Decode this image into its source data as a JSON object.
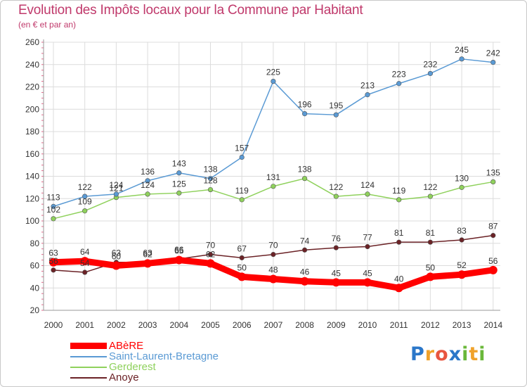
{
  "title": "Evolution des Impôts locaux pour la Commune par Habitant",
  "subtitle": "(en € et par an)",
  "logo": {
    "text": "Proxiti",
    "letters": [
      "P",
      "r",
      "o",
      "x",
      "i",
      "t",
      "i"
    ],
    "colors": [
      "#2b77c9",
      "#f0a22a",
      "#e8553f",
      "#2b77c9",
      "#6ab83a",
      "#f0a22a",
      "#6ab83a"
    ]
  },
  "chart_data": {
    "type": "line",
    "x": [
      "2000",
      "2001",
      "2002",
      "2003",
      "2004",
      "2005",
      "2006",
      "2007",
      "2008",
      "2009",
      "2010",
      "2011",
      "2012",
      "2013",
      "2014"
    ],
    "ylim": [
      20,
      260
    ],
    "yticks": [
      "20",
      "40",
      "60",
      "80",
      "100",
      "120",
      "140",
      "160",
      "180",
      "200",
      "220",
      "240",
      "260"
    ],
    "grid": true,
    "legend_position": "bottom-left",
    "series": [
      {
        "name": "Anoye",
        "color": "#6b2226",
        "values": [
          56,
          54,
          63,
          63,
          66,
          70,
          67,
          70,
          74,
          76,
          77,
          81,
          81,
          83,
          87
        ]
      },
      {
        "name": "Gerderest",
        "color": "#8fd15c",
        "values": [
          102,
          109,
          121,
          124,
          125,
          128,
          119,
          131,
          138,
          122,
          124,
          119,
          122,
          130,
          135
        ]
      },
      {
        "name": "Saint-Laurent-Bretagne",
        "color": "#5a9ad4",
        "values": [
          113,
          122,
          124,
          136,
          143,
          138,
          157,
          225,
          196,
          195,
          213,
          223,
          232,
          245,
          242
        ]
      },
      {
        "name": "ABèRE",
        "color": "#ff0000",
        "values": [
          63,
          64,
          60,
          62,
          65,
          62,
          50,
          48,
          46,
          45,
          45,
          40,
          50,
          52,
          56
        ]
      }
    ],
    "labels": {
      "Anoye": [
        "56",
        "54",
        "63",
        "63",
        "66",
        "70",
        "67",
        "70",
        "74",
        "76",
        "77",
        "81",
        "81",
        "83",
        "87"
      ],
      "Gerderest": [
        "102",
        "109",
        "121",
        "124",
        "125",
        "128",
        "119",
        "131",
        "138",
        "122",
        "124",
        "119",
        "122",
        "130",
        "135"
      ],
      "Saint-Laurent-Bretagne": [
        "113",
        "122",
        "124",
        "136",
        "143",
        "138",
        "157",
        "225",
        "196",
        "195",
        "213",
        "223",
        "232",
        "245",
        "242"
      ],
      "ABèRE": [
        "63",
        "64",
        "60",
        "62",
        "65",
        "62",
        "50",
        "48",
        "46",
        "45",
        "45",
        "40",
        "50",
        "52",
        "56"
      ]
    }
  },
  "legend": [
    {
      "name": "ABèRE",
      "color": "#ff0000"
    },
    {
      "name": "Saint-Laurent-Bretagne",
      "color": "#5a9ad4"
    },
    {
      "name": "Gerderest",
      "color": "#8fd15c"
    },
    {
      "name": "Anoye",
      "color": "#6b2226"
    }
  ]
}
